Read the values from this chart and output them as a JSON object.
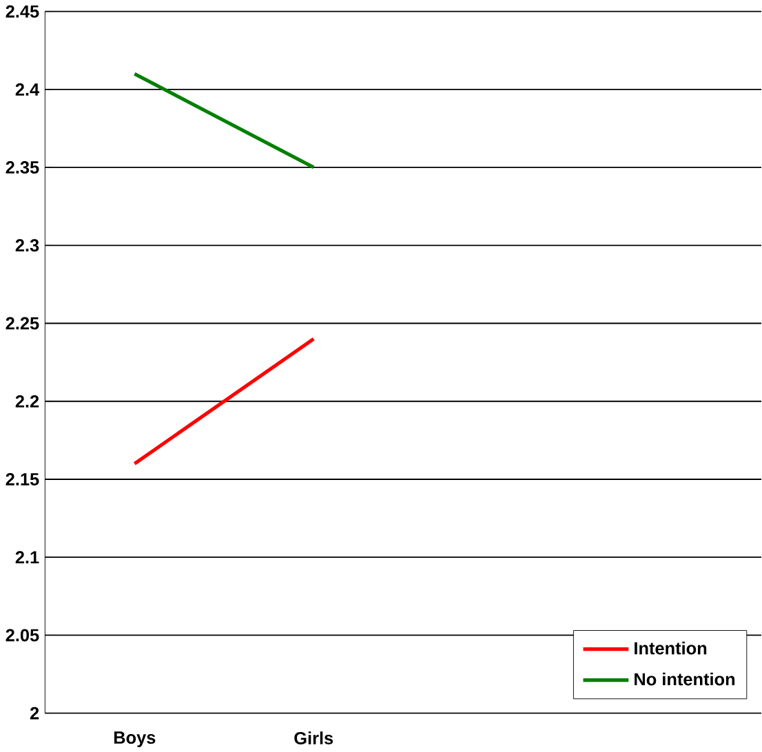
{
  "chart_data": {
    "type": "line",
    "categories": [
      "Boys",
      "Girls",
      null,
      null
    ],
    "series": [
      {
        "name": "Intention",
        "color": "#ff0000",
        "values": [
          2.16,
          2.24,
          null,
          null
        ]
      },
      {
        "name": "No intention",
        "color": "#008000",
        "values": [
          2.41,
          2.35,
          null,
          null
        ]
      }
    ],
    "ylim": [
      2,
      2.45
    ],
    "yticks": [
      2,
      2.05,
      2.1,
      2.15,
      2.2,
      2.25,
      2.3,
      2.35,
      2.4,
      2.45
    ],
    "grid": "y",
    "legend": "bottom right",
    "marker": "none",
    "line_style": "solid"
  }
}
